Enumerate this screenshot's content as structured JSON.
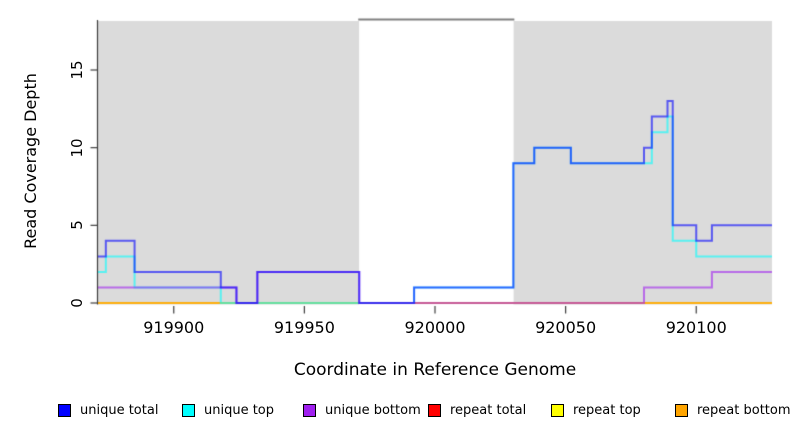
{
  "colors": {
    "panel_gray": "#DBDBDB",
    "gap_top_border": "#808080",
    "axis": "#3d3d3d",
    "background": "#ffffff"
  },
  "chart_data": {
    "type": "line",
    "subtype": "step-coverage",
    "title": "",
    "xlabel": "Coordinate in Reference Genome",
    "ylabel": "Read Coverage Depth",
    "xlim": [
      919871,
      920129
    ],
    "ylim": [
      0,
      18.2
    ],
    "grid": false,
    "x_ticks": [
      919900,
      919950,
      920000,
      920050,
      920100
    ],
    "x_tick_labels": [
      "919900",
      "919950",
      "920000",
      "920050",
      "920100"
    ],
    "y_ticks": [
      0,
      5,
      10,
      15
    ],
    "y_tick_labels": [
      "0",
      "5",
      "10",
      "15"
    ],
    "shading": {
      "gray_regions": [
        [
          919871,
          919971
        ],
        [
          920030,
          920129
        ]
      ],
      "white_region": [
        919971,
        920030
      ]
    },
    "legend_position": "bottom",
    "series": [
      {
        "name": "repeat total",
        "color": "#FF0000",
        "points": [
          [
            919871,
            0
          ],
          [
            920129,
            0
          ]
        ]
      },
      {
        "name": "repeat top",
        "color": "#FFFF00",
        "points": [
          [
            919871,
            0
          ],
          [
            920129,
            0
          ]
        ]
      },
      {
        "name": "repeat bottom",
        "color": "#FFA500",
        "points": [
          [
            919871,
            0
          ],
          [
            920129,
            0
          ]
        ]
      },
      {
        "name": "unique top",
        "color": "#00FFFF",
        "points": [
          [
            919871,
            2
          ],
          [
            919874,
            3
          ],
          [
            919885,
            1
          ],
          [
            919918,
            0
          ],
          [
            919992,
            1
          ],
          [
            920030,
            9
          ],
          [
            920038,
            10
          ],
          [
            920052,
            9
          ],
          [
            920083,
            11
          ],
          [
            920089,
            12
          ],
          [
            920091,
            4
          ],
          [
            920100,
            3
          ],
          [
            920129,
            3
          ]
        ]
      },
      {
        "name": "unique bottom",
        "color": "#A020F0",
        "points": [
          [
            919871,
            1
          ],
          [
            919924,
            0
          ],
          [
            919932,
            2
          ],
          [
            919971,
            0
          ],
          [
            920080,
            1
          ],
          [
            920106,
            2
          ],
          [
            920129,
            2
          ]
        ]
      },
      {
        "name": "unique total",
        "color": "#0000FF",
        "points": [
          [
            919871,
            3
          ],
          [
            919874,
            4
          ],
          [
            919885,
            2
          ],
          [
            919918,
            1
          ],
          [
            919924,
            0
          ],
          [
            919932,
            2
          ],
          [
            919971,
            0
          ],
          [
            919992,
            1
          ],
          [
            920030,
            9
          ],
          [
            920038,
            10
          ],
          [
            920052,
            9
          ],
          [
            920080,
            10
          ],
          [
            920083,
            12
          ],
          [
            920089,
            13
          ],
          [
            920091,
            5
          ],
          [
            920100,
            4
          ],
          [
            920106,
            5
          ],
          [
            920129,
            5
          ]
        ]
      }
    ]
  },
  "legend": {
    "items": [
      {
        "label": "unique total",
        "color": "#0000FF"
      },
      {
        "label": "unique top",
        "color": "#00FFFF"
      },
      {
        "label": "unique bottom",
        "color": "#A020F0"
      },
      {
        "label": "repeat total",
        "color": "#FF0000"
      },
      {
        "label": "repeat top",
        "color": "#FFFF00"
      },
      {
        "label": "repeat bottom",
        "color": "#FFA500"
      }
    ]
  }
}
